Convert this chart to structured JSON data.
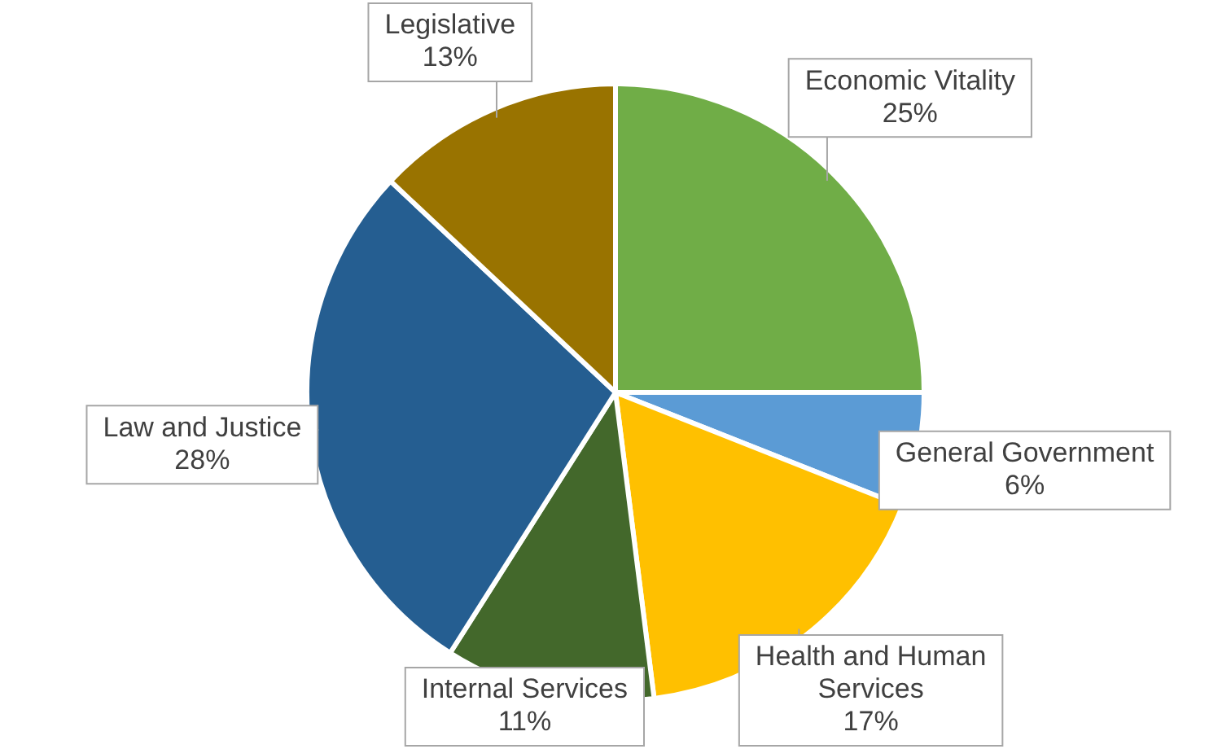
{
  "chart_data": {
    "type": "pie",
    "categories": [
      "Economic Vitality",
      "General Government",
      "Health and Human Services",
      "Internal Services",
      "Law and Justice",
      "Legislative"
    ],
    "values": [
      25,
      6,
      17,
      11,
      28,
      13
    ],
    "value_labels": [
      "25%",
      "6%",
      "17%",
      "11%",
      "28%",
      "13%"
    ],
    "colors": [
      "#70ad47",
      "#5b9bd5",
      "#ffc000",
      "#43682b",
      "#255e91",
      "#997300"
    ],
    "legend": false
  }
}
